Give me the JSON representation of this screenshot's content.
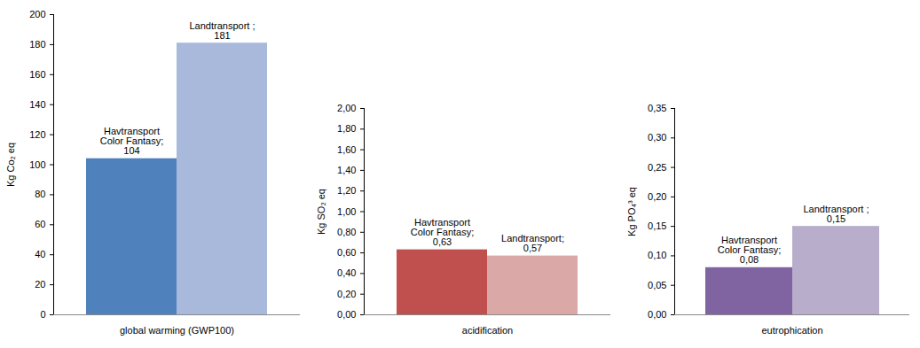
{
  "chart_data": [
    {
      "type": "bar",
      "categories": [
        "global warming (GWP100)"
      ],
      "y_label": "Kg Co₂ eq",
      "series": [
        {
          "name": "Havtransport Color Fantasy",
          "color": "#4f81bd",
          "values": [
            104
          ],
          "value_labels": [
            "Havtransport Color Fantasy; 104"
          ]
        },
        {
          "name": "Landtransport",
          "color": "#a9b9db",
          "values": [
            181
          ],
          "value_labels": [
            "Landtransport ; 181"
          ]
        }
      ],
      "ylim": [
        0,
        200
      ],
      "yticks": [
        0,
        20,
        40,
        60,
        80,
        100,
        120,
        140,
        160,
        180,
        200
      ],
      "data_labels": true
    },
    {
      "type": "bar",
      "categories": [
        "acidification"
      ],
      "y_label": "Kg SO₂ eq",
      "series": [
        {
          "name": "Havtransport Color Fantasy",
          "color": "#c0504d",
          "values": [
            0.63
          ],
          "value_labels": [
            "Havtransport Color Fantasy; 0,63"
          ]
        },
        {
          "name": "Landtransport",
          "color": "#d9a8a7",
          "values": [
            0.57
          ],
          "value_labels": [
            "Landtransport; 0,57"
          ]
        }
      ],
      "ylim": [
        0,
        2
      ],
      "yticks": [
        {
          "value": 0,
          "label": "0,00"
        },
        {
          "value": 0.2,
          "label": "0,20"
        },
        {
          "value": 0.4,
          "label": "0,40"
        },
        {
          "value": 0.6,
          "label": "0,60"
        },
        {
          "value": 0.8,
          "label": "0,80"
        },
        {
          "value": 1,
          "label": "1,00"
        },
        {
          "value": 1.2,
          "label": "1,20"
        },
        {
          "value": 1.4,
          "label": "1,40"
        },
        {
          "value": 1.6,
          "label": "1,60"
        },
        {
          "value": 1.8,
          "label": "1,80"
        },
        {
          "value": 2,
          "label": "2,00"
        }
      ],
      "data_labels": true
    },
    {
      "type": "bar",
      "categories": [
        "eutrophication"
      ],
      "y_label": "Kg PO₄³ eq",
      "series": [
        {
          "name": "Havtransport Color Fantasy",
          "color": "#8064a2",
          "values": [
            0.08
          ],
          "value_labels": [
            "Havtransport Color Fantasy; 0,08"
          ]
        },
        {
          "name": "Landtransport",
          "color": "#b8aecb",
          "values": [
            0.15
          ],
          "value_labels": [
            "Landtransport ; 0,15"
          ]
        }
      ],
      "ylim": [
        0,
        0.35
      ],
      "yticks": [
        {
          "value": 0,
          "label": "0,00"
        },
        {
          "value": 0.05,
          "label": "0,05"
        },
        {
          "value": 0.1,
          "label": "0,10"
        },
        {
          "value": 0.15,
          "label": "0,15"
        },
        {
          "value": 0.2,
          "label": "0,20"
        },
        {
          "value": 0.25,
          "label": "0,25"
        },
        {
          "value": 0.3,
          "label": "0,30"
        },
        {
          "value": 0.35,
          "label": "0,35"
        }
      ],
      "data_labels": true
    }
  ]
}
